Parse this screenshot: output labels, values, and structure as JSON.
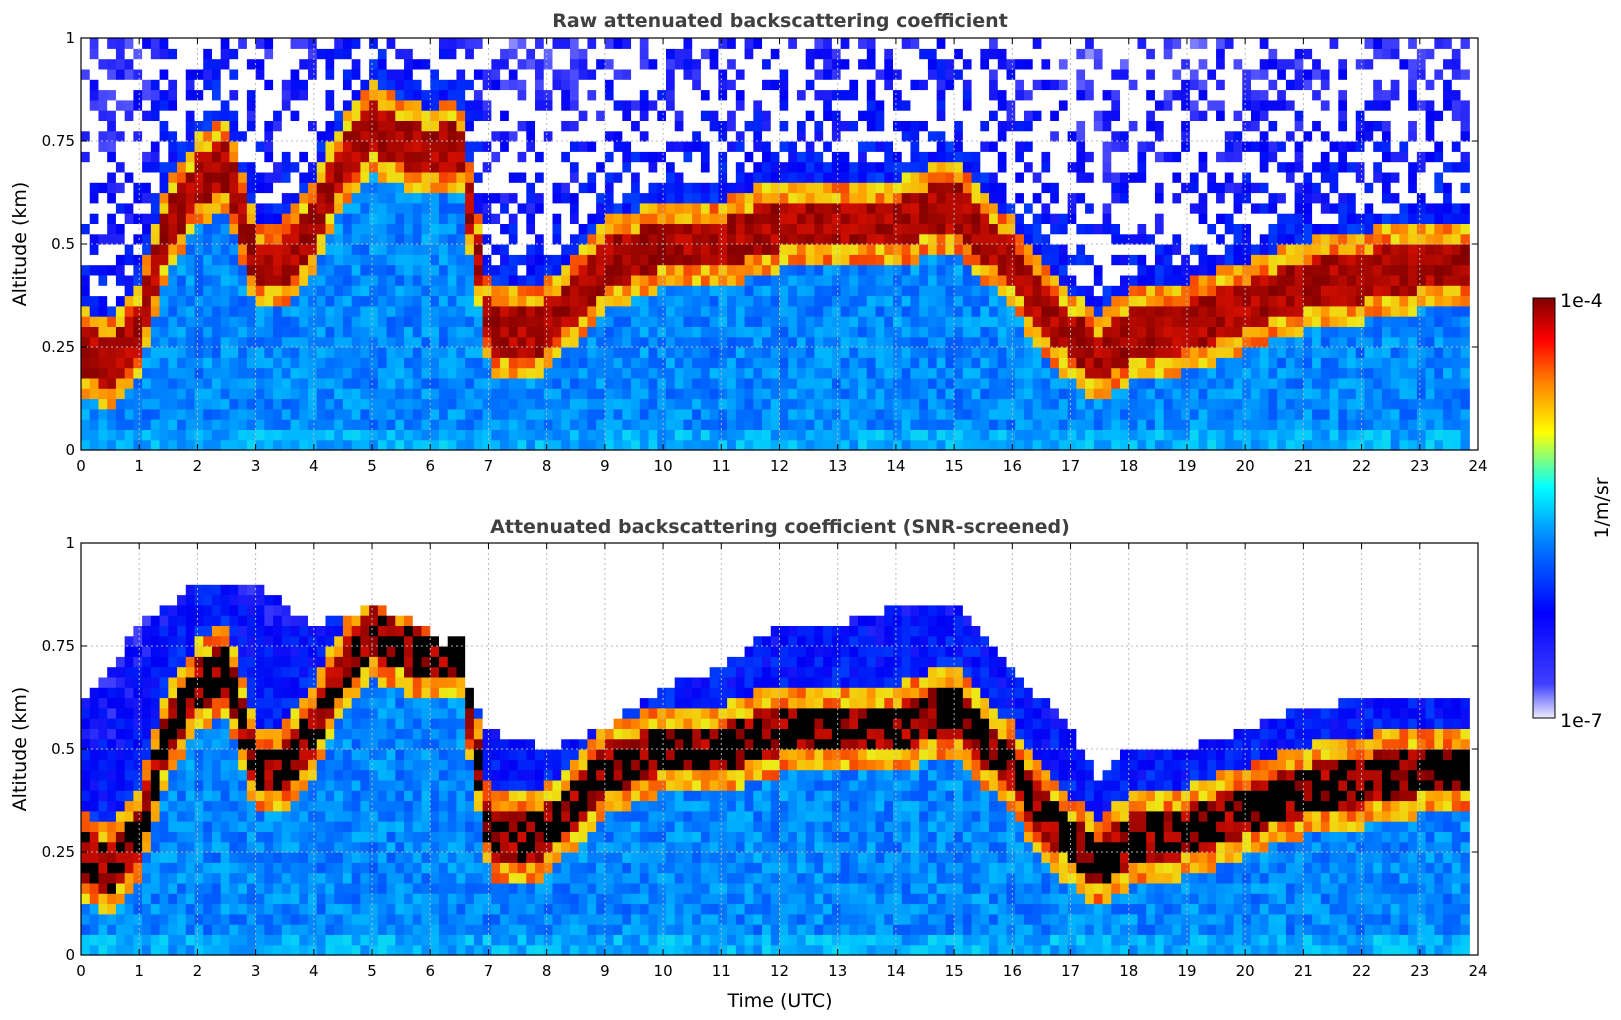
{
  "chart_data": [
    {
      "type": "heatmap",
      "title": "Raw attenuated backscattering coefficient",
      "xlabel": "",
      "ylabel": "Altitude (km)",
      "xlim": [
        0,
        24
      ],
      "ylim": [
        0,
        1
      ],
      "x_ticks": [
        "0",
        "1",
        "2",
        "3",
        "4",
        "5",
        "6",
        "7",
        "8",
        "9",
        "10",
        "11",
        "12",
        "13",
        "14",
        "15",
        "16",
        "17",
        "18",
        "19",
        "20",
        "21",
        "22",
        "23",
        "24"
      ],
      "y_ticks": [
        "0",
        "0.25",
        "0.5",
        "0.75",
        "1"
      ],
      "grid": true,
      "data_end_time": 23.8,
      "screened": false,
      "top_layer_altitude_km": [
        [
          0,
          0.25
        ],
        [
          0.5,
          0.2
        ],
        [
          1,
          0.3
        ],
        [
          1.5,
          0.55
        ],
        [
          2,
          0.65
        ],
        [
          2.5,
          0.7
        ],
        [
          3,
          0.45
        ],
        [
          3.5,
          0.45
        ],
        [
          4,
          0.55
        ],
        [
          4.5,
          0.7
        ],
        [
          5,
          0.78
        ],
        [
          5.5,
          0.75
        ],
        [
          6,
          0.72
        ],
        [
          6.5,
          0.75
        ],
        [
          7,
          0.3
        ],
        [
          7.5,
          0.28
        ],
        [
          8,
          0.3
        ],
        [
          9,
          0.45
        ],
        [
          10,
          0.5
        ],
        [
          11,
          0.5
        ],
        [
          12,
          0.55
        ],
        [
          13,
          0.55
        ],
        [
          14,
          0.55
        ],
        [
          15,
          0.6
        ],
        [
          16,
          0.45
        ],
        [
          16.5,
          0.35
        ],
        [
          17,
          0.28
        ],
        [
          17.5,
          0.22
        ],
        [
          18,
          0.28
        ],
        [
          19,
          0.3
        ],
        [
          20,
          0.35
        ],
        [
          21,
          0.4
        ],
        [
          22,
          0.42
        ],
        [
          23,
          0.45
        ],
        [
          23.8,
          0.45
        ]
      ]
    },
    {
      "type": "heatmap",
      "title": "Attenuated backscattering coefficient (SNR-screened)",
      "xlabel": "Time (UTC)",
      "ylabel": "Altitude (km)",
      "xlim": [
        0,
        24
      ],
      "ylim": [
        0,
        1
      ],
      "x_ticks": [
        "0",
        "1",
        "2",
        "3",
        "4",
        "5",
        "6",
        "7",
        "8",
        "9",
        "10",
        "11",
        "12",
        "13",
        "14",
        "15",
        "16",
        "17",
        "18",
        "19",
        "20",
        "21",
        "22",
        "23",
        "24"
      ],
      "y_ticks": [
        "0",
        "0.25",
        "0.5",
        "0.75",
        "1"
      ],
      "grid": true,
      "data_end_time": 23.8,
      "screened": true,
      "signal_top_altitude_km": [
        [
          0,
          0.6
        ],
        [
          1,
          0.8
        ],
        [
          2,
          0.9
        ],
        [
          3,
          0.9
        ],
        [
          4,
          0.8
        ],
        [
          5,
          0.85
        ],
        [
          6,
          0.8
        ],
        [
          7,
          0.55
        ],
        [
          8,
          0.5
        ],
        [
          9,
          0.55
        ],
        [
          10,
          0.65
        ],
        [
          11,
          0.7
        ],
        [
          12,
          0.8
        ],
        [
          13,
          0.8
        ],
        [
          14,
          0.85
        ],
        [
          15,
          0.85
        ],
        [
          16,
          0.7
        ],
        [
          17,
          0.55
        ],
        [
          17.5,
          0.42
        ],
        [
          18,
          0.5
        ],
        [
          19,
          0.5
        ],
        [
          20,
          0.55
        ],
        [
          21,
          0.6
        ],
        [
          22,
          0.62
        ],
        [
          23,
          0.62
        ],
        [
          23.8,
          0.62
        ]
      ]
    }
  ],
  "colorbar": {
    "label": "1/m/sr",
    "max_label": "1e-4",
    "min_label": "1e-7",
    "scale": "log",
    "range": [
      1e-07,
      0.0001
    ],
    "colors": [
      "#ececfb",
      "#0000ff",
      "#0070ff",
      "#00ffff",
      "#ffff00",
      "#ff8000",
      "#ff0000",
      "#800000"
    ]
  }
}
